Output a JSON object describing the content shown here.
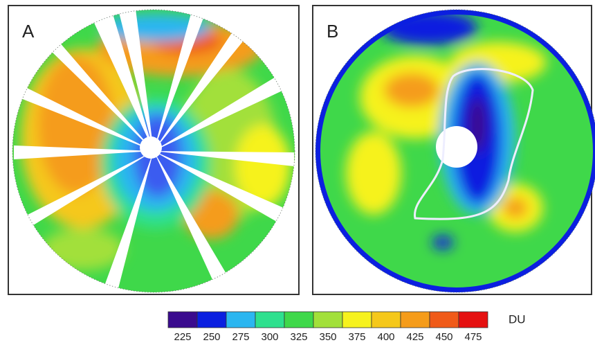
{
  "panels": [
    {
      "label": "A"
    },
    {
      "label": "B"
    }
  ],
  "colorbar": {
    "unit": "DU",
    "levels": [
      225,
      250,
      275,
      300,
      325,
      350,
      375,
      400,
      425,
      450,
      475
    ],
    "colors": [
      "#3a0b8e",
      "#0b1fe0",
      "#2bb6f0",
      "#2ee08e",
      "#3fd84a",
      "#a2e03a",
      "#f6f21e",
      "#f5c81a",
      "#f59c1a",
      "#f05a18",
      "#e51010"
    ]
  }
}
